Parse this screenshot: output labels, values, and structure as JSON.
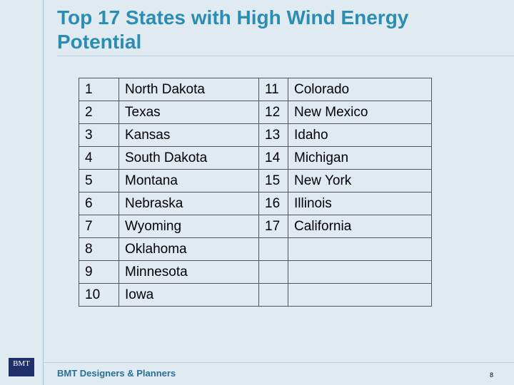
{
  "header": {
    "title": "Top 17 States with High Wind Energy Potential"
  },
  "table": {
    "rows": [
      [
        "1",
        "North Dakota",
        "11",
        "Colorado"
      ],
      [
        "2",
        "Texas",
        "12",
        "New Mexico"
      ],
      [
        "3",
        "Kansas",
        "13",
        "Idaho"
      ],
      [
        "4",
        "South Dakota",
        "14",
        "Michigan"
      ],
      [
        "5",
        "Montana",
        "15",
        "New York"
      ],
      [
        "6",
        "Nebraska",
        "16",
        "Illinois"
      ],
      [
        "7",
        "Wyoming",
        "17",
        "California"
      ],
      [
        "8",
        "Oklahoma"
      ],
      [
        "9",
        "Minnesota"
      ],
      [
        "10",
        "Iowa"
      ]
    ]
  },
  "footer": {
    "company": "BMT Designers & Planners",
    "page": 8,
    "logo": "BMT"
  }
}
